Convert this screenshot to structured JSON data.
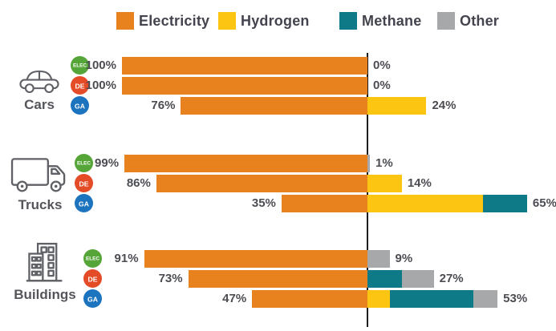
{
  "chart_data": {
    "type": "bar",
    "orientation": "horizontal-diverging-stacked",
    "unit": "%",
    "title": "",
    "baseline_note": "vertical baseline separates electricity share (left) from other fuels (right)",
    "series": [
      {
        "name": "Electricity",
        "key": "electricity",
        "color": "#e8821e"
      },
      {
        "name": "Hydrogen",
        "key": "hydrogen",
        "color": "#fcc511"
      },
      {
        "name": "Methane",
        "key": "methane",
        "color": "#0e7987"
      },
      {
        "name": "Other",
        "key": "other",
        "color": "#a7a8aa"
      }
    ],
    "scenarios": [
      {
        "code": "ELEC",
        "color": "#55a538"
      },
      {
        "code": "DE",
        "color": "#e44b27"
      },
      {
        "code": "GA",
        "color": "#1c73be"
      }
    ],
    "groups": [
      {
        "label": "Cars",
        "icon": "car-icon",
        "rows": [
          {
            "scenario": "ELEC",
            "values": {
              "electricity": 100,
              "hydrogen": 0,
              "methane": 0,
              "other": 0
            },
            "left_label": "100%",
            "right_label": "0%"
          },
          {
            "scenario": "DE",
            "values": {
              "electricity": 100,
              "hydrogen": 0,
              "methane": 0,
              "other": 0
            },
            "left_label": "100%",
            "right_label": "0%"
          },
          {
            "scenario": "GA",
            "values": {
              "electricity": 76,
              "hydrogen": 24,
              "methane": 0,
              "other": 0
            },
            "left_label": "76%",
            "right_label": "24%"
          }
        ]
      },
      {
        "label": "Trucks",
        "icon": "truck-icon",
        "rows": [
          {
            "scenario": "ELEC",
            "values": {
              "electricity": 99,
              "hydrogen": 0,
              "methane": 0,
              "other": 1
            },
            "left_label": "99%",
            "right_label": "1%"
          },
          {
            "scenario": "DE",
            "values": {
              "electricity": 86,
              "hydrogen": 14,
              "methane": 0,
              "other": 0
            },
            "left_label": "86%",
            "right_label": "14%"
          },
          {
            "scenario": "GA",
            "values": {
              "electricity": 35,
              "hydrogen": 47,
              "methane": 18,
              "other": 0
            },
            "left_label": "35%",
            "right_label": "65%"
          }
        ]
      },
      {
        "label": "Buildings",
        "icon": "building-icon",
        "rows": [
          {
            "scenario": "ELEC",
            "values": {
              "electricity": 91,
              "hydrogen": 0,
              "methane": 0,
              "other": 9
            },
            "left_label": "91%",
            "right_label": "9%"
          },
          {
            "scenario": "DE",
            "values": {
              "electricity": 73,
              "hydrogen": 0,
              "methane": 14,
              "other": 13
            },
            "left_label": "73%",
            "right_label": "27%"
          },
          {
            "scenario": "GA",
            "values": {
              "electricity": 47,
              "hydrogen": 9,
              "methane": 34,
              "other": 10
            },
            "left_label": "47%",
            "right_label": "53%"
          }
        ]
      }
    ]
  }
}
